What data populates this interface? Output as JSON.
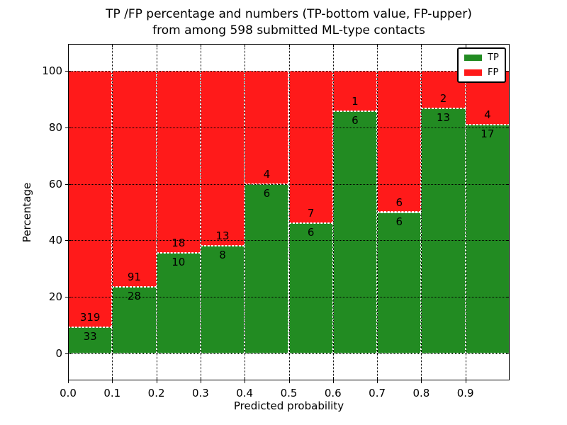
{
  "chart_data": {
    "type": "bar",
    "stacked": true,
    "normalized_to_percent": 100,
    "title_line1": "TP /FP percentage and numbers (TP-bottom value, FP-upper)",
    "title_line2": "from among 598 submitted ML-type contacts",
    "xlabel": "Predicted probability",
    "ylabel": "Percentage",
    "xlim": [
      0.0,
      1.0
    ],
    "ylim": [
      -9.5,
      109.5
    ],
    "bin_width": 0.1,
    "bin_starts": [
      0.0,
      0.1,
      0.2,
      0.3,
      0.4,
      0.5,
      0.6,
      0.7,
      0.8,
      0.9
    ],
    "series": [
      {
        "name": "TP",
        "color": "#228B22",
        "counts": [
          33,
          28,
          10,
          8,
          6,
          6,
          6,
          6,
          13,
          17
        ]
      },
      {
        "name": "FP",
        "color": "#FF1A1A",
        "counts": [
          319,
          91,
          18,
          13,
          4,
          7,
          1,
          6,
          2,
          4
        ]
      }
    ],
    "bar_value_labels": "TP count below segment boundary, FP count above boundary",
    "x_ticks": [
      "0.0",
      "0.1",
      "0.2",
      "0.3",
      "0.4",
      "0.5",
      "0.6",
      "0.7",
      "0.8",
      "0.9"
    ],
    "y_ticks": [
      0,
      20,
      40,
      60,
      80,
      100
    ],
    "grid": {
      "style": "dotted",
      "color": "#000000",
      "axes": "both"
    },
    "bar_edge": {
      "style": "dashed",
      "color": "#FFFFFF"
    },
    "legend": {
      "position": "upper right",
      "items": [
        {
          "label": "TP",
          "color": "#228B22"
        },
        {
          "label": "FP",
          "color": "#FF1A1A"
        }
      ]
    }
  }
}
